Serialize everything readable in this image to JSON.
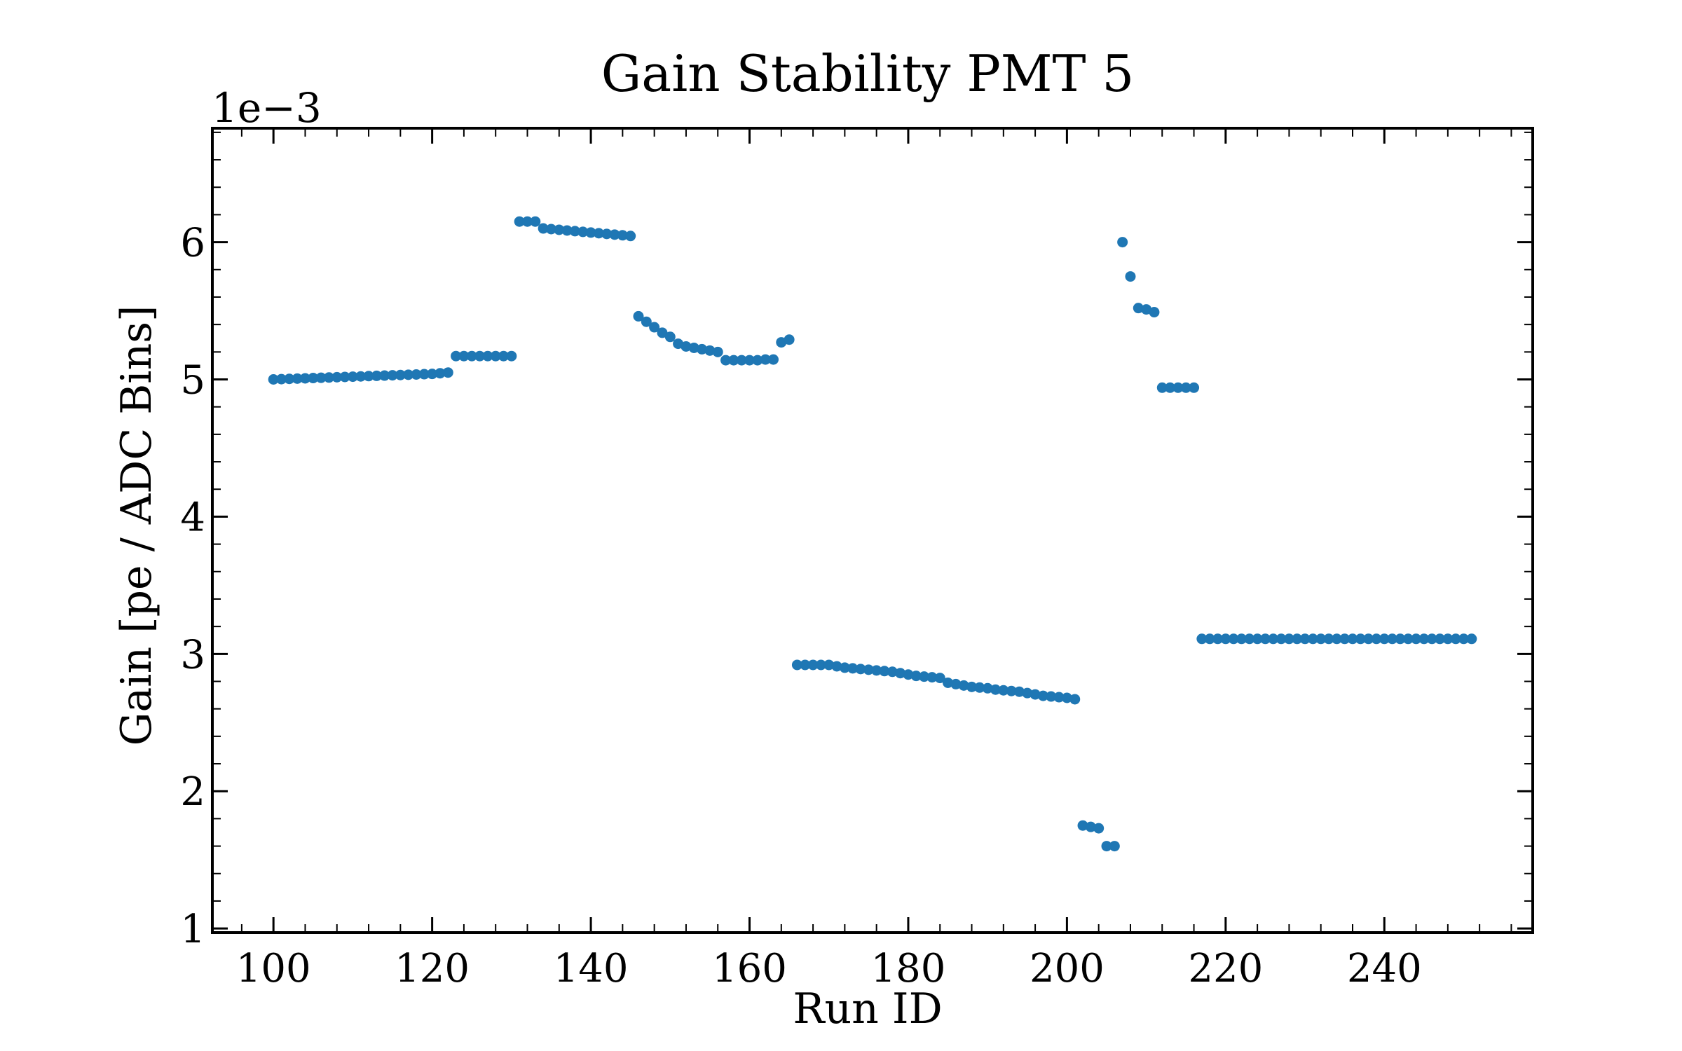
{
  "chart_data": {
    "type": "scatter",
    "title": "Gain Stability PMT 5",
    "xlabel": "Run ID",
    "ylabel": "Gain [pe / ADC Bins]",
    "y_offset_label": "1e−3",
    "xlim": [
      92.3,
      258.7
    ],
    "ylim": [
      0.97,
      6.83
    ],
    "x_ticks": [
      100,
      120,
      140,
      160,
      180,
      200,
      220,
      240
    ],
    "x_minor_step": 4,
    "y_ticks": [
      1,
      2,
      3,
      4,
      5,
      6
    ],
    "y_minor_step": 0.2,
    "tick_direction": "in",
    "grid": false,
    "marker_color": "#1f77b4",
    "series": [
      {
        "x": [
          100,
          101,
          102,
          103,
          104,
          105,
          106,
          107,
          108,
          109,
          110,
          111,
          112,
          113,
          114,
          115,
          116,
          117,
          118,
          119,
          120,
          121,
          122,
          123,
          124,
          125,
          126,
          127,
          128,
          129,
          130,
          131,
          132,
          133,
          134,
          135,
          136,
          137,
          138,
          139,
          140,
          141,
          142,
          143,
          144,
          145,
          146,
          147,
          148,
          149,
          150,
          151,
          152,
          153,
          154,
          155,
          156,
          157,
          158,
          159,
          160,
          161,
          162,
          163,
          164,
          165,
          166,
          167,
          168,
          169,
          170,
          171,
          172,
          173,
          174,
          175,
          176,
          177,
          178,
          179,
          180,
          181,
          182,
          183,
          184,
          185,
          186,
          187,
          188,
          189,
          190,
          191,
          192,
          193,
          194,
          195,
          196,
          197,
          198,
          199,
          200,
          201,
          202,
          203,
          204,
          205,
          206,
          207,
          208,
          209,
          210,
          211,
          212,
          213,
          214,
          215,
          216,
          217,
          218,
          219,
          220,
          221,
          222,
          223,
          224,
          225,
          226,
          227,
          228,
          229,
          230,
          231,
          232,
          233,
          234,
          235,
          236,
          237,
          238,
          239,
          240,
          241,
          242,
          243,
          244,
          245,
          246,
          247,
          248,
          249,
          250,
          251
        ],
        "y": [
          5.0,
          5.002,
          5.004,
          5.006,
          5.008,
          5.01,
          5.012,
          5.014,
          5.016,
          5.018,
          5.02,
          5.022,
          5.024,
          5.026,
          5.028,
          5.03,
          5.032,
          5.034,
          5.036,
          5.038,
          5.04,
          5.045,
          5.05,
          5.17,
          5.17,
          5.17,
          5.17,
          5.17,
          5.17,
          5.17,
          5.17,
          6.15,
          6.15,
          6.15,
          6.1,
          6.095,
          6.09,
          6.085,
          6.08,
          6.075,
          6.07,
          6.065,
          6.06,
          6.055,
          6.05,
          6.045,
          5.46,
          5.42,
          5.38,
          5.34,
          5.31,
          5.26,
          5.24,
          5.23,
          5.22,
          5.21,
          5.2,
          5.14,
          5.14,
          5.14,
          5.14,
          5.14,
          5.145,
          5.145,
          5.27,
          5.29,
          2.92,
          2.92,
          2.92,
          2.92,
          2.92,
          2.91,
          2.9,
          2.895,
          2.89,
          2.885,
          2.88,
          2.875,
          2.87,
          2.86,
          2.85,
          2.84,
          2.835,
          2.83,
          2.825,
          2.79,
          2.78,
          2.77,
          2.76,
          2.755,
          2.75,
          2.74,
          2.735,
          2.73,
          2.725,
          2.715,
          2.705,
          2.695,
          2.69,
          2.685,
          2.68,
          2.67,
          1.75,
          1.74,
          1.73,
          1.6,
          1.6,
          6.0,
          5.75,
          5.52,
          5.51,
          5.49,
          4.94,
          4.94,
          4.94,
          4.94,
          4.94,
          3.11,
          3.11,
          3.11,
          3.11,
          3.11,
          3.11,
          3.11,
          3.11,
          3.11,
          3.11,
          3.11,
          3.11,
          3.11,
          3.11,
          3.11,
          3.11,
          3.11,
          3.11,
          3.11,
          3.11,
          3.11,
          3.11,
          3.11,
          3.11,
          3.11,
          3.11,
          3.11,
          3.11,
          3.11,
          3.11,
          3.11,
          3.11,
          3.11,
          3.11,
          3.11
        ]
      }
    ]
  }
}
